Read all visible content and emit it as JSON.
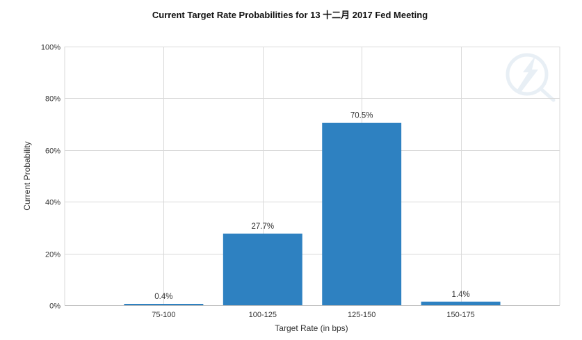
{
  "colors": {
    "bar": "#2e81c1",
    "grid": "#d9d9d9",
    "watermark": "#d6e2ee"
  },
  "icons": {
    "watermark": "lightning-globe-watermark-icon"
  },
  "chart_data": {
    "type": "bar",
    "title": "Current Target Rate Probabilities for 13 十二月 2017 Fed Meeting",
    "xlabel": "Target Rate (in bps)",
    "ylabel": "Current Probability",
    "categories": [
      "75-100",
      "100-125",
      "125-150",
      "150-175"
    ],
    "values": [
      0.4,
      27.7,
      70.5,
      1.4
    ],
    "data_labels": [
      "0.4%",
      "27.7%",
      "70.5%",
      "1.4%"
    ],
    "ylim": [
      0,
      100
    ],
    "yticks": [
      0,
      20,
      40,
      60,
      80,
      100
    ],
    "ytick_labels": [
      "0%",
      "20%",
      "40%",
      "60%",
      "80%",
      "100%"
    ],
    "grid": true,
    "legend": "none"
  }
}
